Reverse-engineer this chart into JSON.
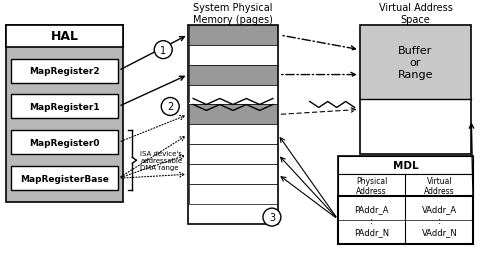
{
  "title_mem": "System Physical\nMemory (pages)",
  "title_vaddr": "Virtual Address\nSpace",
  "hal_label": "HAL",
  "map_registers": [
    "MapRegister2",
    "MapRegister1",
    "MapRegister0",
    "MapRegisterBase"
  ],
  "buffer_label": "Buffer\nor\nRange",
  "mdl_label": "MDL",
  "mdl_col1": "Physical\nAddress",
  "mdl_col2": "Virtual\nAddress",
  "mdl_row1_c1": "PAddr_A",
  "mdl_row1_c2": "VAddr_A",
  "mdl_row2_c1": "PAddr_N",
  "mdl_row2_c2": "VAddr_N",
  "isa_label": "ISA device's\naddressable\nDMA range",
  "circle_labels": [
    "1",
    "2",
    "3"
  ],
  "bg_color": "#ffffff",
  "register_fill": "#d0d0d0",
  "hal_fill": "#b8b8b8",
  "mem_page_gray": "#999999",
  "light_gray": "#c8c8c8"
}
